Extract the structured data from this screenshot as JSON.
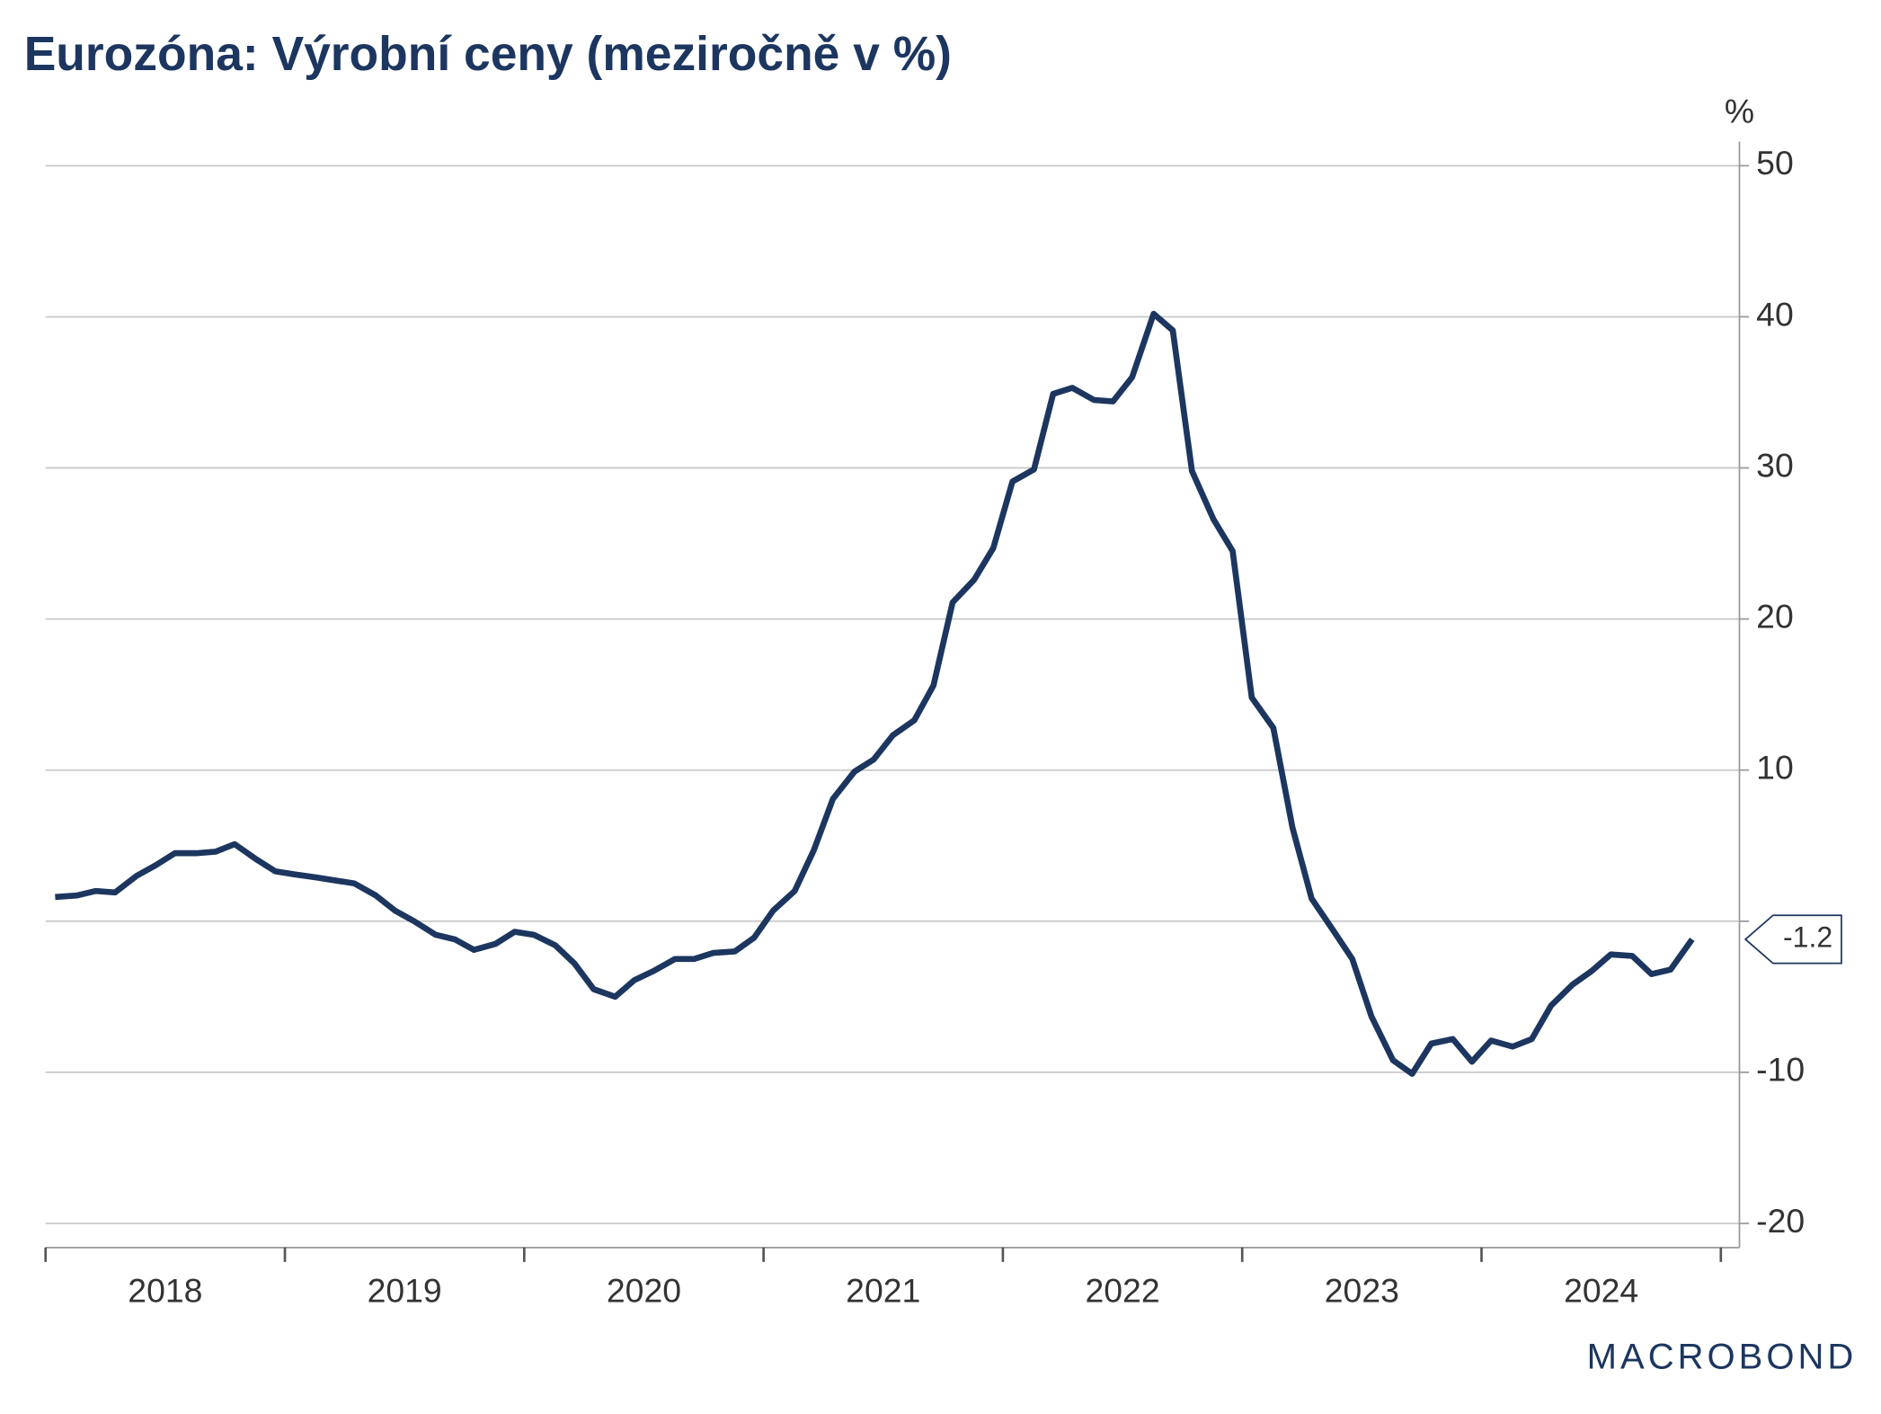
{
  "chart_data": {
    "type": "line",
    "title": "Eurozóna: Výrobní ceny (meziročně v %)",
    "y_unit": "%",
    "logo": "MACROBOND",
    "x": [
      2018.04,
      2018.13,
      2018.21,
      2018.29,
      2018.38,
      2018.46,
      2018.54,
      2018.63,
      2018.71,
      2018.79,
      2018.88,
      2018.96,
      2019.04,
      2019.13,
      2019.21,
      2019.29,
      2019.38,
      2019.46,
      2019.54,
      2019.63,
      2019.71,
      2019.79,
      2019.88,
      2019.96,
      2020.04,
      2020.13,
      2020.21,
      2020.29,
      2020.38,
      2020.46,
      2020.54,
      2020.63,
      2020.71,
      2020.79,
      2020.88,
      2020.96,
      2021.04,
      2021.13,
      2021.21,
      2021.29,
      2021.38,
      2021.46,
      2021.54,
      2021.63,
      2021.71,
      2021.79,
      2021.88,
      2021.96,
      2022.04,
      2022.13,
      2022.21,
      2022.29,
      2022.38,
      2022.46,
      2022.54,
      2022.63,
      2022.71,
      2022.79,
      2022.88,
      2022.96,
      2023.04,
      2023.13,
      2023.21,
      2023.29,
      2023.38,
      2023.46,
      2023.54,
      2023.63,
      2023.71,
      2023.79,
      2023.88,
      2023.96,
      2024.04,
      2024.13,
      2024.21,
      2024.29,
      2024.38,
      2024.46,
      2024.54,
      2024.63,
      2024.71,
      2024.79,
      2024.88
    ],
    "series": [
      {
        "color": "#1c3660",
        "values": [
          1.6,
          1.7,
          2.0,
          1.9,
          3.0,
          3.7,
          4.5,
          4.5,
          4.6,
          5.1,
          4.1,
          3.3,
          3.1,
          2.9,
          2.7,
          2.5,
          1.7,
          0.7,
          0.0,
          -0.9,
          -1.2,
          -1.9,
          -1.5,
          -0.7,
          -0.9,
          -1.6,
          -2.8,
          -4.5,
          -5.0,
          -3.9,
          -3.3,
          -2.5,
          -2.5,
          -2.1,
          -2.0,
          -1.1,
          0.7,
          2.0,
          4.7,
          8.1,
          9.9,
          10.7,
          12.3,
          13.3,
          15.6,
          21.1,
          22.6,
          24.7,
          29.1,
          29.9,
          34.9,
          35.3,
          34.5,
          34.4,
          36.0,
          40.2,
          39.1,
          29.8,
          26.6,
          24.5,
          14.8,
          12.8,
          6.2,
          1.5,
          -0.6,
          -2.5,
          -6.3,
          -9.2,
          -10.1,
          -8.1,
          -7.8,
          -9.3,
          -7.9,
          -8.3,
          -7.8,
          -5.6,
          -4.2,
          -3.3,
          -2.2,
          -2.3,
          -3.5,
          -3.2,
          -1.2
        ]
      }
    ],
    "xlim": [
      2018,
      2025
    ],
    "xticks": [
      2018,
      2019,
      2020,
      2021,
      2022,
      2023,
      2024
    ],
    "ylim": [
      -21.6,
      51.6
    ],
    "yticks": [
      -20,
      -10,
      {
        "value": 0,
        "label": null
      },
      10,
      20,
      30,
      40,
      50
    ],
    "grid": true
  }
}
